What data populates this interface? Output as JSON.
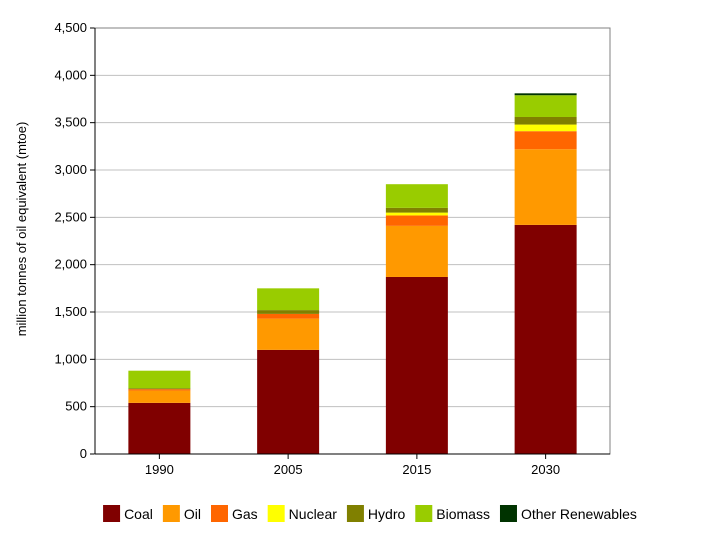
{
  "chart_data": {
    "type": "bar",
    "stacked": true,
    "categories": [
      "1990",
      "2005",
      "2015",
      "2030"
    ],
    "series": [
      {
        "name": "Coal",
        "color": "#800000",
        "values": [
          540,
          1100,
          1870,
          2420
        ]
      },
      {
        "name": "Oil",
        "color": "#ff9900",
        "values": [
          130,
          330,
          540,
          800
        ]
      },
      {
        "name": "Gas",
        "color": "#ff6600",
        "values": [
          15,
          50,
          110,
          190
        ]
      },
      {
        "name": "Nuclear",
        "color": "#ffff00",
        "values": [
          0,
          0,
          30,
          70
        ]
      },
      {
        "name": "Hydro",
        "color": "#808000",
        "values": [
          10,
          40,
          50,
          80
        ]
      },
      {
        "name": "Biomass",
        "color": "#99cc00",
        "values": [
          185,
          230,
          250,
          230
        ]
      },
      {
        "name": "Other Renewables",
        "color": "#003300",
        "values": [
          0,
          0,
          0,
          20
        ]
      }
    ],
    "title": "",
    "xlabel": "",
    "ylabel": "million tonnes of oil equivalent (mtoe)",
    "ylim": [
      0,
      4500
    ],
    "yticks": [
      0,
      500,
      1000,
      1500,
      2000,
      2500,
      3000,
      3500,
      4000,
      4500
    ],
    "ytick_labels": [
      "0",
      "500",
      "1,000",
      "1,500",
      "2,000",
      "2,500",
      "3,000",
      "3,500",
      "4,000",
      "4,500"
    ],
    "grid": true,
    "legend_position": "bottom"
  }
}
